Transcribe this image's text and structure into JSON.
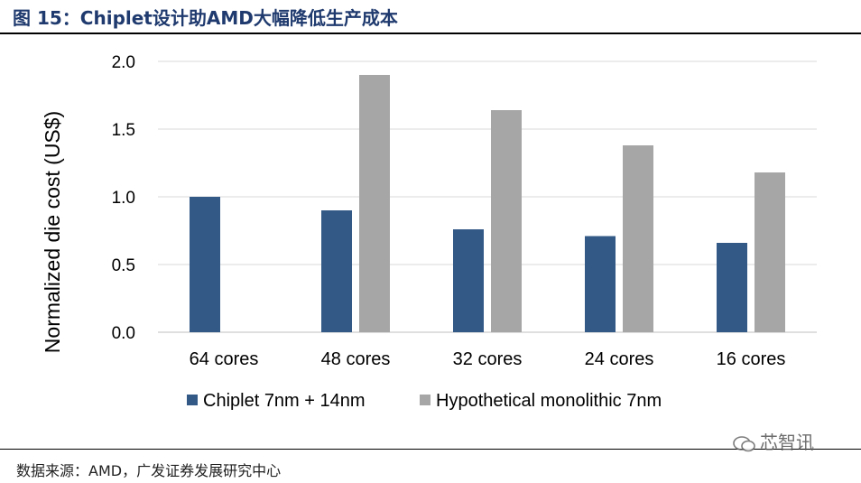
{
  "figure_title": "图 15：Chiplet设计助AMD大幅降低生产成本",
  "source_note": "数据来源：AMD，广发证券发展研究中心",
  "watermark": "芯智讯",
  "colors": {
    "chiplet": "#335a87",
    "monolithic": "#a6a6a6",
    "grid": "#d9d9d9",
    "title": "#1f3a6e"
  },
  "chart_data": {
    "type": "bar",
    "title": "",
    "xlabel": "",
    "ylabel": "Normalized die cost (US$)",
    "ylim": [
      0,
      2.0
    ],
    "yticks": [
      "0.0",
      "0.5",
      "1.0",
      "1.5",
      "2.0"
    ],
    "ytick_values": [
      0,
      0.5,
      1.0,
      1.5,
      2.0
    ],
    "grid": true,
    "legend_position": "bottom",
    "categories": [
      "64 cores",
      "48 cores",
      "32 cores",
      "24 cores",
      "16 cores"
    ],
    "series": [
      {
        "name": "Chiplet 7nm + 14nm",
        "values": [
          1.0,
          0.9,
          0.76,
          0.71,
          0.66
        ]
      },
      {
        "name": "Hypothetical monolithic 7nm",
        "values": [
          null,
          1.9,
          1.64,
          1.38,
          1.18
        ]
      }
    ]
  }
}
